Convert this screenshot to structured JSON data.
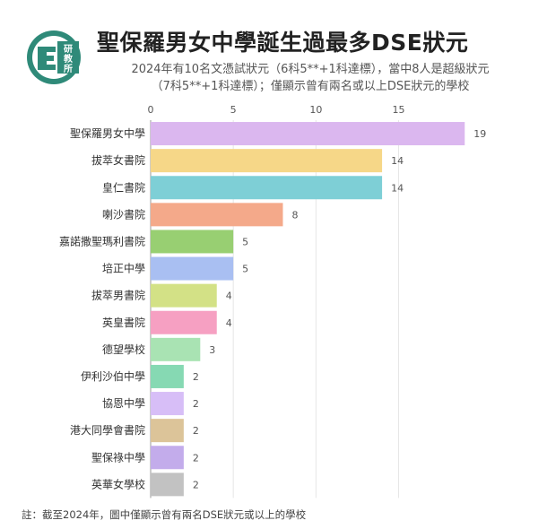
{
  "header": {
    "logo_text": "研教所",
    "title": "聖保羅男女中學誕生過最多DSE狀元",
    "subtitle_line1": "2024年有10名文憑試狀元（6科5**+1科達標），當中8人是超級狀元",
    "subtitle_line2": "（7科5**+1科達標）；僅顯示曾有兩名或以上DSE狀元的學校"
  },
  "footnote": "註：截至2024年，圖中僅顯示曾有兩名DSE狀元或以上的學校",
  "chart_data": {
    "type": "bar",
    "orientation": "horizontal",
    "categories": [
      "聖保羅男女中學",
      "拔萃女書院",
      "皇仁書院",
      "喇沙書院",
      "嘉諾撒聖瑪利書院",
      "培正中學",
      "拔萃男書院",
      "英皇書院",
      "德望學校",
      "伊利沙伯中學",
      "協恩中學",
      "港大同學會書院",
      "聖保祿中學",
      "英華女學校"
    ],
    "values": [
      19,
      14,
      14,
      8,
      5,
      5,
      4,
      4,
      3,
      2,
      2,
      2,
      2,
      2
    ],
    "colors": [
      "#dbb7ef",
      "#f6d788",
      "#7ecfd6",
      "#f4a98a",
      "#98cf72",
      "#a9bff2",
      "#d3e186",
      "#f6a0c2",
      "#a9e3b3",
      "#86d9b3",
      "#d7bef7",
      "#dcc499",
      "#c3aceb",
      "#c2c2c2"
    ],
    "xticks": [
      0,
      5,
      10,
      15
    ],
    "xlim": [
      0,
      19.8
    ],
    "grid": true,
    "data_labels": true
  }
}
